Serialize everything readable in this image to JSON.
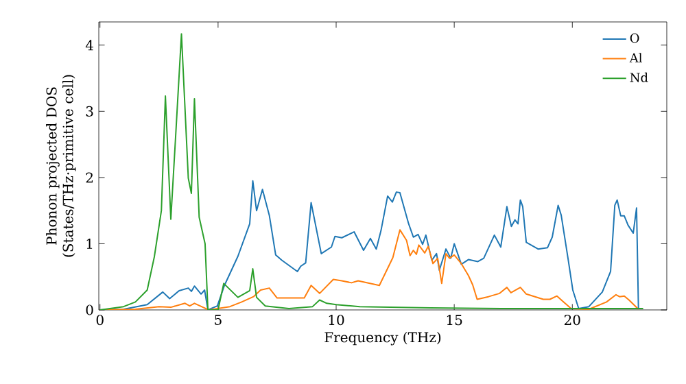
{
  "chart_data": {
    "type": "line",
    "xlabel": "Frequency (THz)",
    "ylabel": "Phonon projected DOS\n(States/THz·primitive cell)",
    "xlim": [
      -0.05,
      24
    ],
    "ylim": [
      0,
      4.35
    ],
    "xticks": [
      0,
      5,
      10,
      15,
      20
    ],
    "yticks": [
      0,
      1,
      2,
      3,
      4
    ],
    "legend": "top right",
    "grid": false,
    "marker": "none",
    "line_style": "solid",
    "series": [
      {
        "name": "O",
        "color": "#1f77b4",
        "x": [
          0,
          1,
          2,
          2.66,
          2.95,
          3.35,
          3.74,
          3.87,
          4.0,
          4.28,
          4.43,
          4.57,
          4.97,
          5.27,
          5.84,
          6.34,
          6.47,
          6.63,
          6.88,
          7.17,
          7.44,
          7.7,
          8.36,
          8.5,
          8.71,
          8.94,
          9.37,
          9.8,
          9.95,
          10.24,
          10.76,
          11.16,
          11.45,
          11.7,
          11.9,
          12.18,
          12.38,
          12.55,
          12.7,
          13.07,
          13.27,
          13.47,
          13.66,
          13.8,
          14.05,
          14.25,
          14.37,
          14.65,
          14.85,
          15.0,
          15.3,
          15.6,
          16.0,
          16.25,
          16.7,
          16.97,
          17.23,
          17.42,
          17.57,
          17.7,
          17.8,
          17.9,
          18.05,
          18.55,
          18.95,
          19.15,
          19.4,
          19.53,
          19.83,
          20.02,
          20.27,
          20.7,
          21.27,
          21.62,
          21.8,
          21.9,
          22.05,
          22.2,
          22.36,
          22.58,
          22.72,
          22.8
        ],
        "values": [
          0,
          0.01,
          0.08,
          0.27,
          0.17,
          0.29,
          0.33,
          0.28,
          0.36,
          0.24,
          0.3,
          0,
          0.06,
          0.37,
          0.81,
          1.3,
          1.95,
          1.5,
          1.82,
          1.43,
          0.83,
          0.75,
          0.58,
          0.66,
          0.71,
          1.62,
          0.85,
          0.95,
          1.11,
          1.09,
          1.18,
          0.9,
          1.08,
          0.92,
          1.2,
          1.72,
          1.63,
          1.78,
          1.77,
          1.3,
          1.1,
          1.14,
          0.99,
          1.13,
          0.75,
          0.85,
          0.6,
          0.92,
          0.78,
          1.0,
          0.69,
          0.76,
          0.73,
          0.78,
          1.13,
          0.95,
          1.56,
          1.26,
          1.36,
          1.3,
          1.66,
          1.56,
          1.02,
          0.92,
          0.94,
          1.1,
          1.58,
          1.43,
          0.75,
          0.3,
          0.02,
          0.05,
          0.27,
          0.58,
          1.58,
          1.66,
          1.42,
          1.42,
          1.28,
          1.16,
          1.54,
          0.02
        ]
      },
      {
        "name": "Al",
        "color": "#ff7f0e",
        "x": [
          0,
          1.5,
          2.5,
          3.0,
          3.6,
          3.8,
          4.0,
          4.3,
          4.6,
          5.5,
          6.0,
          6.5,
          6.8,
          7.17,
          7.5,
          8.3,
          8.65,
          8.94,
          9.3,
          9.88,
          10.24,
          10.65,
          10.93,
          11.83,
          12.4,
          12.7,
          12.98,
          13.13,
          13.27,
          13.4,
          13.5,
          13.75,
          13.9,
          14.1,
          14.3,
          14.47,
          14.65,
          14.8,
          15.0,
          15.3,
          15.6,
          15.78,
          15.97,
          16.45,
          16.92,
          17.23,
          17.4,
          17.8,
          18.05,
          18.77,
          19.05,
          19.35,
          19.6,
          19.95,
          20.7,
          21.45,
          21.85,
          22.0,
          22.2,
          22.4,
          22.8
        ],
        "values": [
          0,
          0.01,
          0.05,
          0.04,
          0.1,
          0.06,
          0.1,
          0.05,
          0,
          0.05,
          0.12,
          0.2,
          0.3,
          0.33,
          0.18,
          0.18,
          0.18,
          0.37,
          0.25,
          0.46,
          0.44,
          0.41,
          0.44,
          0.37,
          0.79,
          1.21,
          1.05,
          0.82,
          0.9,
          0.84,
          0.98,
          0.86,
          0.96,
          0.7,
          0.78,
          0.4,
          0.85,
          0.78,
          0.83,
          0.7,
          0.52,
          0.38,
          0.16,
          0.2,
          0.25,
          0.34,
          0.26,
          0.34,
          0.24,
          0.16,
          0.16,
          0.21,
          0.13,
          0.02,
          0.01,
          0.12,
          0.23,
          0.2,
          0.21,
          0.15,
          0.01
        ]
      },
      {
        "name": "Nd",
        "color": "#2ca02c",
        "x": [
          0,
          1.0,
          1.5,
          2.0,
          2.3,
          2.6,
          2.77,
          3.0,
          3.2,
          3.45,
          3.74,
          3.87,
          4.0,
          4.2,
          4.45,
          4.57,
          5.0,
          5.24,
          5.84,
          6.34,
          6.47,
          6.63,
          7.0,
          8.0,
          9.0,
          9.3,
          9.6,
          10.0,
          11.0,
          14.0,
          17.0,
          20.0,
          23.0
        ],
        "values": [
          0,
          0.05,
          0.12,
          0.3,
          0.8,
          1.5,
          3.23,
          1.37,
          2.6,
          4.17,
          1.99,
          1.76,
          3.19,
          1.4,
          1.0,
          0,
          0,
          0.4,
          0.19,
          0.29,
          0.62,
          0.19,
          0.06,
          0.02,
          0.05,
          0.15,
          0.1,
          0.08,
          0.05,
          0.03,
          0.02,
          0.02,
          0.02
        ]
      }
    ]
  }
}
